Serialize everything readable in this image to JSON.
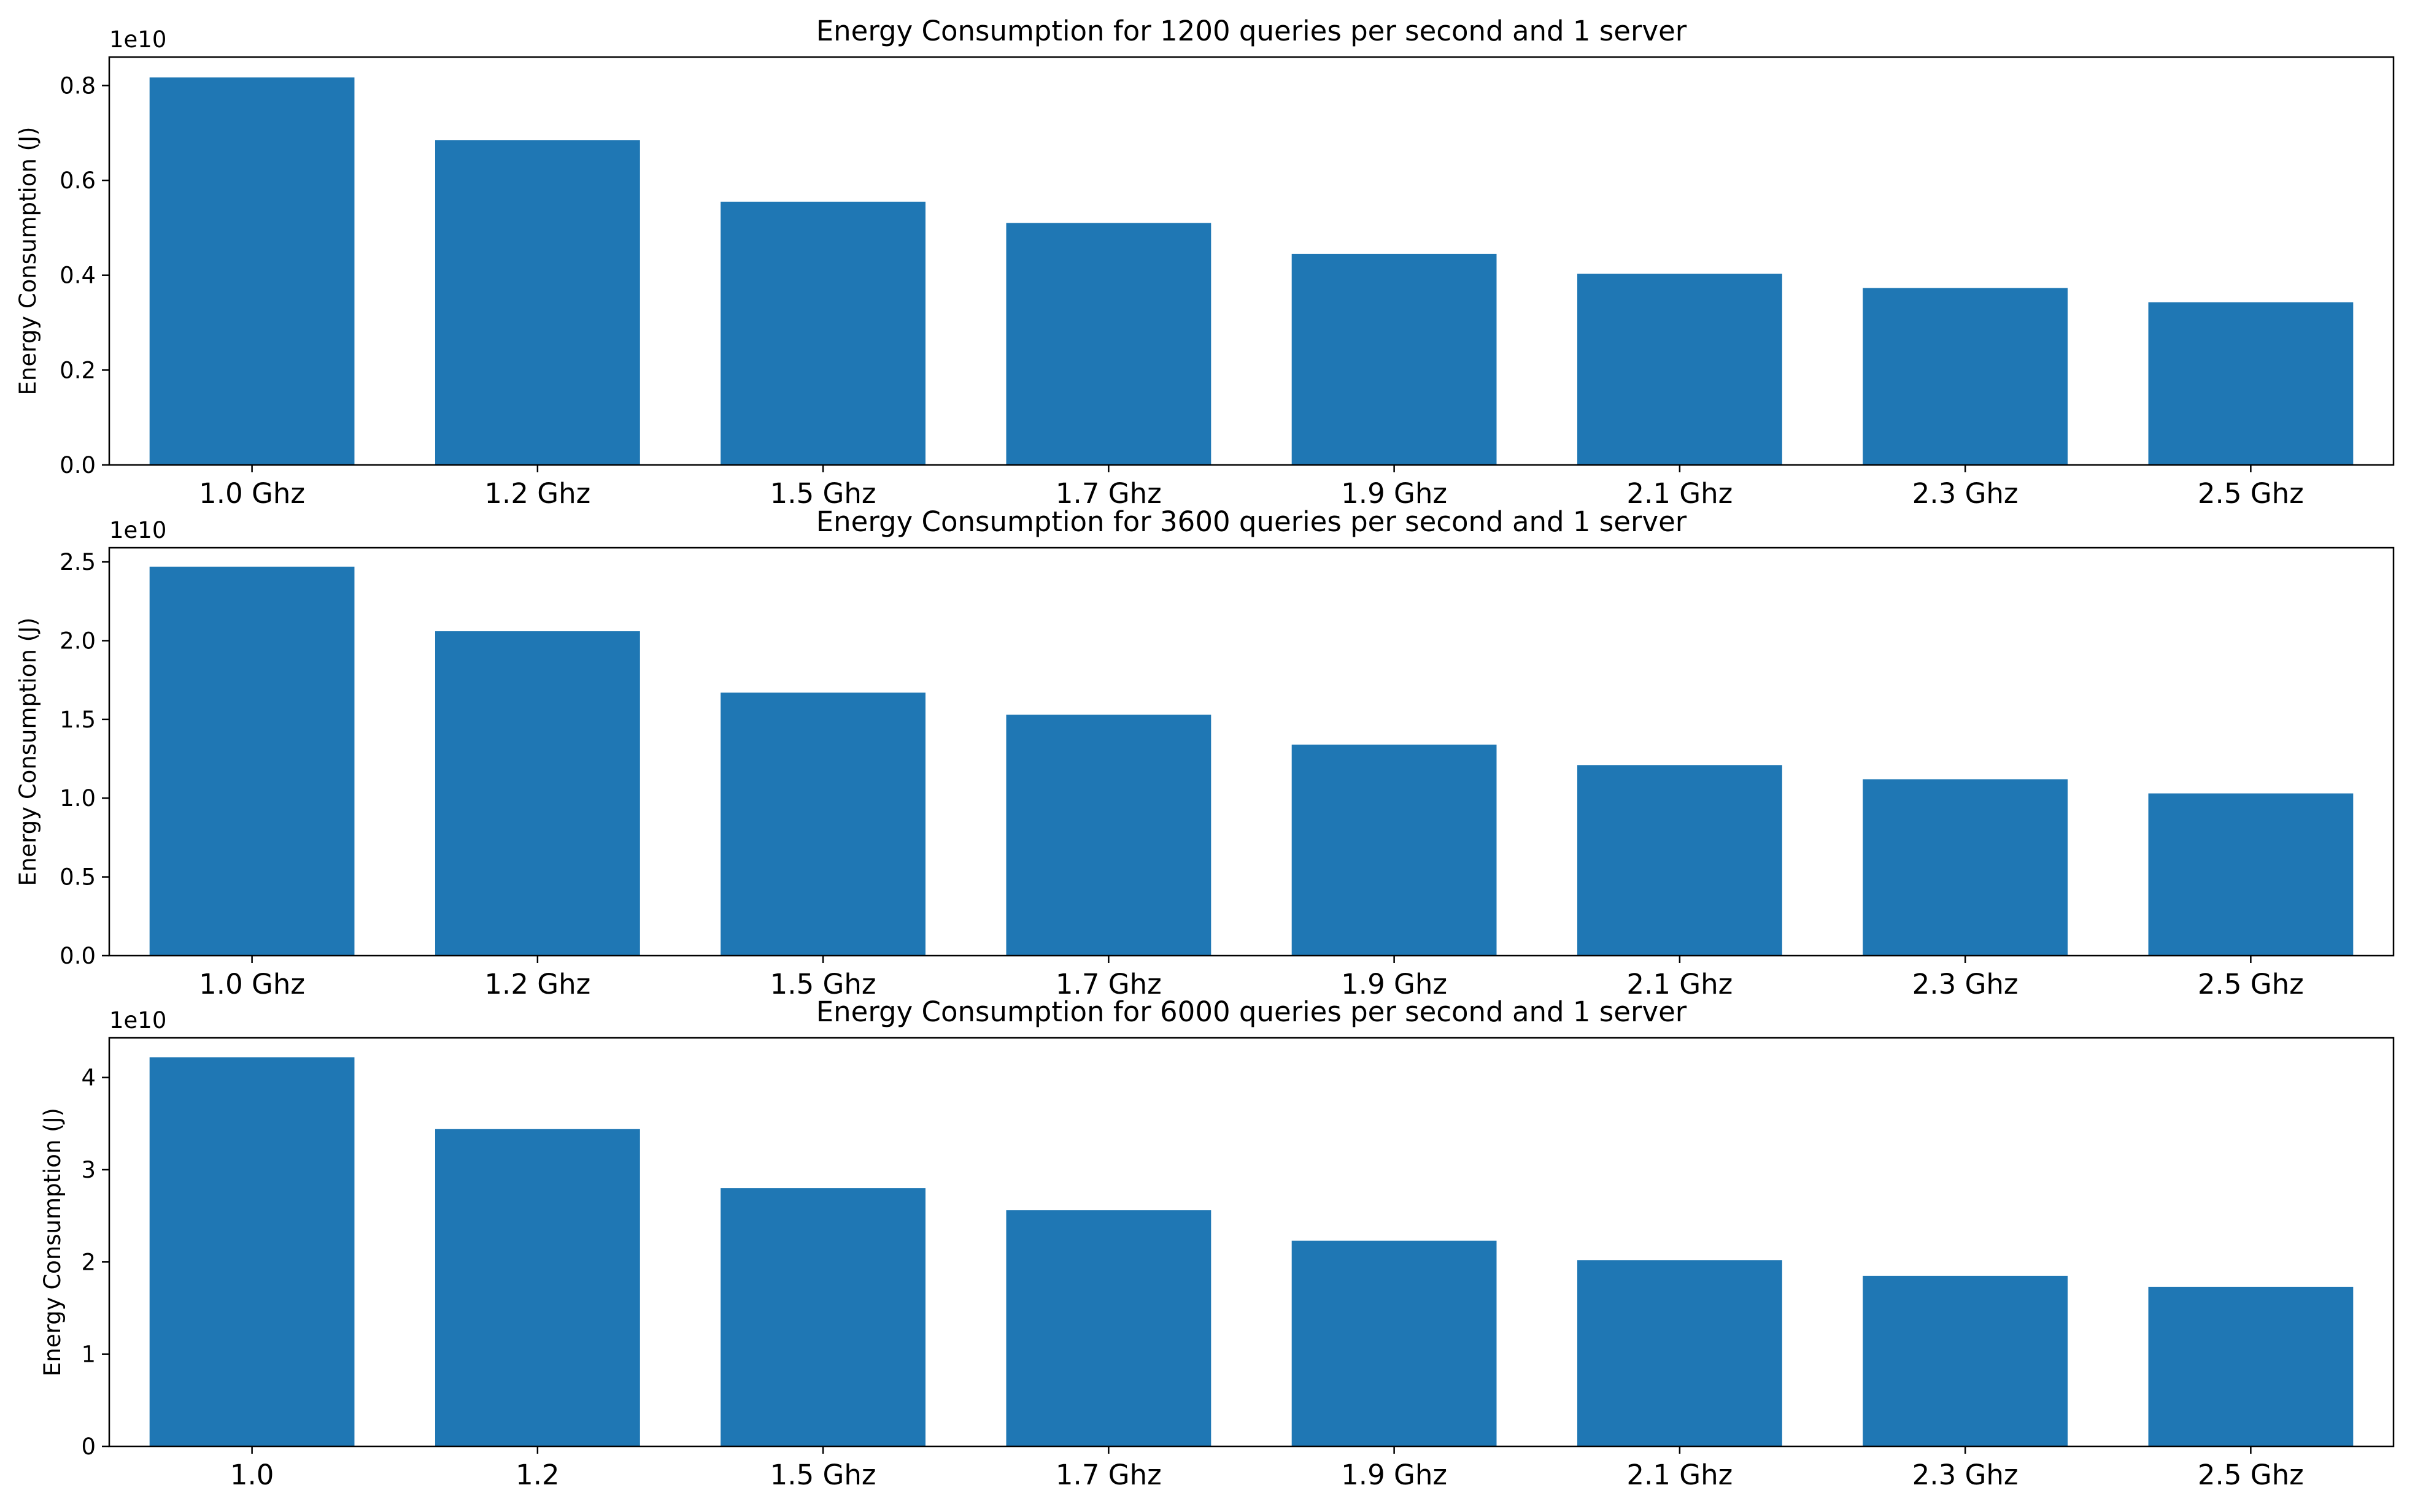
{
  "chart_data": [
    {
      "type": "bar",
      "title": "Energy Consumption for 1200 queries per second and 1 server",
      "xlabel": "",
      "ylabel": "Energy Consumption (J)",
      "offset_label": "1e10",
      "categories": [
        "1.0 Ghz",
        "1.2 Ghz",
        "1.5 Ghz",
        "1.7 Ghz",
        "1.9 Ghz",
        "2.1 Ghz",
        "2.3 Ghz",
        "2.5 Ghz"
      ],
      "values": [
        8170000000.0,
        6850000000.0,
        5550000000.0,
        5100000000.0,
        4450000000.0,
        4030000000.0,
        3730000000.0,
        3430000000.0
      ],
      "ylim": [
        0,
        8600000000.0
      ],
      "yticks": [
        0,
        2000000000.0,
        4000000000.0,
        6000000000.0,
        8000000000.0
      ],
      "ytick_labels": [
        "0.0",
        "0.2",
        "0.4",
        "0.6",
        "0.8"
      ],
      "bar_color": "#1f77b4",
      "grid": false
    },
    {
      "type": "bar",
      "title": "Energy Consumption for 3600 queries per second and 1 server",
      "xlabel": "",
      "ylabel": "Energy Consumption (J)",
      "offset_label": "1e10",
      "categories": [
        "1.0 Ghz",
        "1.2 Ghz",
        "1.5 Ghz",
        "1.7 Ghz",
        "1.9 Ghz",
        "2.1 Ghz",
        "2.3 Ghz",
        "2.5 Ghz"
      ],
      "values": [
        24700000000.0,
        20600000000.0,
        16700000000.0,
        15300000000.0,
        13400000000.0,
        12100000000.0,
        11200000000.0,
        10300000000.0
      ],
      "ylim": [
        0,
        25900000000.0
      ],
      "yticks": [
        0,
        5000000000.0,
        10000000000.0,
        15000000000.0,
        20000000000.0,
        25000000000.0
      ],
      "ytick_labels": [
        "0.0",
        "0.5",
        "1.0",
        "1.5",
        "2.0",
        "2.5"
      ],
      "bar_color": "#1f77b4",
      "grid": false
    },
    {
      "type": "bar",
      "title": "Energy Consumption for 6000 queries per second and 1 server",
      "xlabel": "",
      "ylabel": "Energy Consumption (J)",
      "offset_label": "1e10",
      "categories": [
        "1.0",
        "1.2",
        "1.5 Ghz",
        "1.7 Ghz",
        "1.9 Ghz",
        "2.1 Ghz",
        "2.3 Ghz",
        "2.5 Ghz"
      ],
      "values": [
        42200000000.0,
        34400000000.0,
        28000000000.0,
        25600000000.0,
        22300000000.0,
        20200000000.0,
        18500000000.0,
        17300000000.0
      ],
      "ylim": [
        0,
        44300000000.0
      ],
      "yticks": [
        0,
        10000000000.0,
        20000000000.0,
        30000000000.0,
        40000000000.0
      ],
      "ytick_labels": [
        "0",
        "1",
        "2",
        "3",
        "4"
      ],
      "bar_color": "#1f77b4",
      "grid": false
    }
  ]
}
